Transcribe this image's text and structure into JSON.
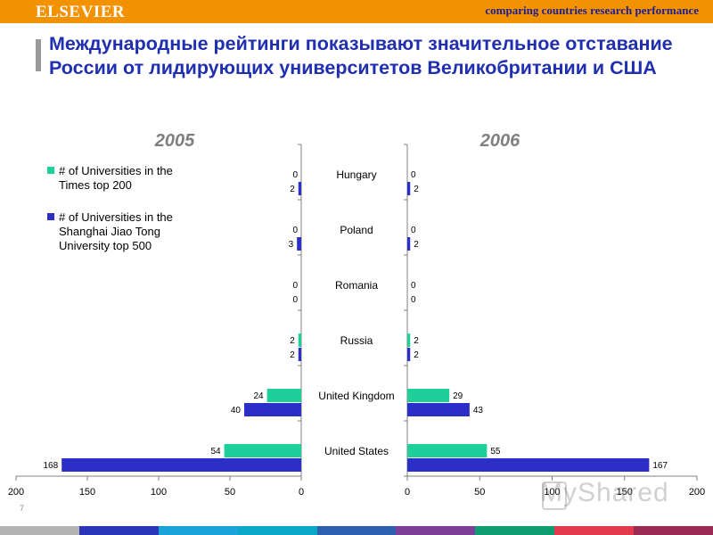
{
  "header": {
    "logo": "ELSEVIER",
    "tagline": "comparing countries research performance"
  },
  "title_line1": "Международные рейтинги показывают значительное отставание",
  "title_line2": "России от лидирующих университетов Великобритании и США",
  "page_number": "7",
  "watermark": "MyShared",
  "strip_colors": [
    "#b3b3b3",
    "#2b35b8",
    "#1aa3d8",
    "#0aa7c9",
    "#2e5fae",
    "#7d3f98",
    "#0e9d6e",
    "#e23b4e",
    "#9b2b52"
  ],
  "colors": {
    "times": "#1ecf9a",
    "shanghai": "#2b2fc8",
    "year_label": "#7f7f7f",
    "header_bg": "#f39200",
    "title": "#1f2fb0"
  },
  "chart_data": {
    "type": "bar",
    "orientation": "horizontal",
    "categories": [
      "Hungary",
      "Poland",
      "Romania",
      "Russia",
      "United Kingdom",
      "United States"
    ],
    "legend": {
      "placement": "top-left",
      "entries": [
        "# of Universities in the Times top 200",
        "# of Universities in the Shanghai Jiao Tong University top 500"
      ]
    },
    "panels": [
      {
        "year": "2005",
        "direction": "left",
        "xlim": [
          0,
          200
        ],
        "ticks": [
          "0",
          "50",
          "100",
          "150",
          "200"
        ],
        "series": [
          {
            "values": [
              0,
              0,
              0,
              2,
              24,
              54
            ]
          },
          {
            "values": [
              2,
              3,
              0,
              2,
              40,
              168
            ]
          }
        ]
      },
      {
        "year": "2006",
        "direction": "right",
        "xlim": [
          0,
          200
        ],
        "ticks": [
          "0",
          "50",
          "100",
          "150",
          "200"
        ],
        "series": [
          {
            "values": [
              0,
              0,
              0,
              2,
              29,
              55
            ]
          },
          {
            "values": [
              2,
              2,
              0,
              2,
              43,
              167
            ]
          }
        ]
      }
    ]
  }
}
